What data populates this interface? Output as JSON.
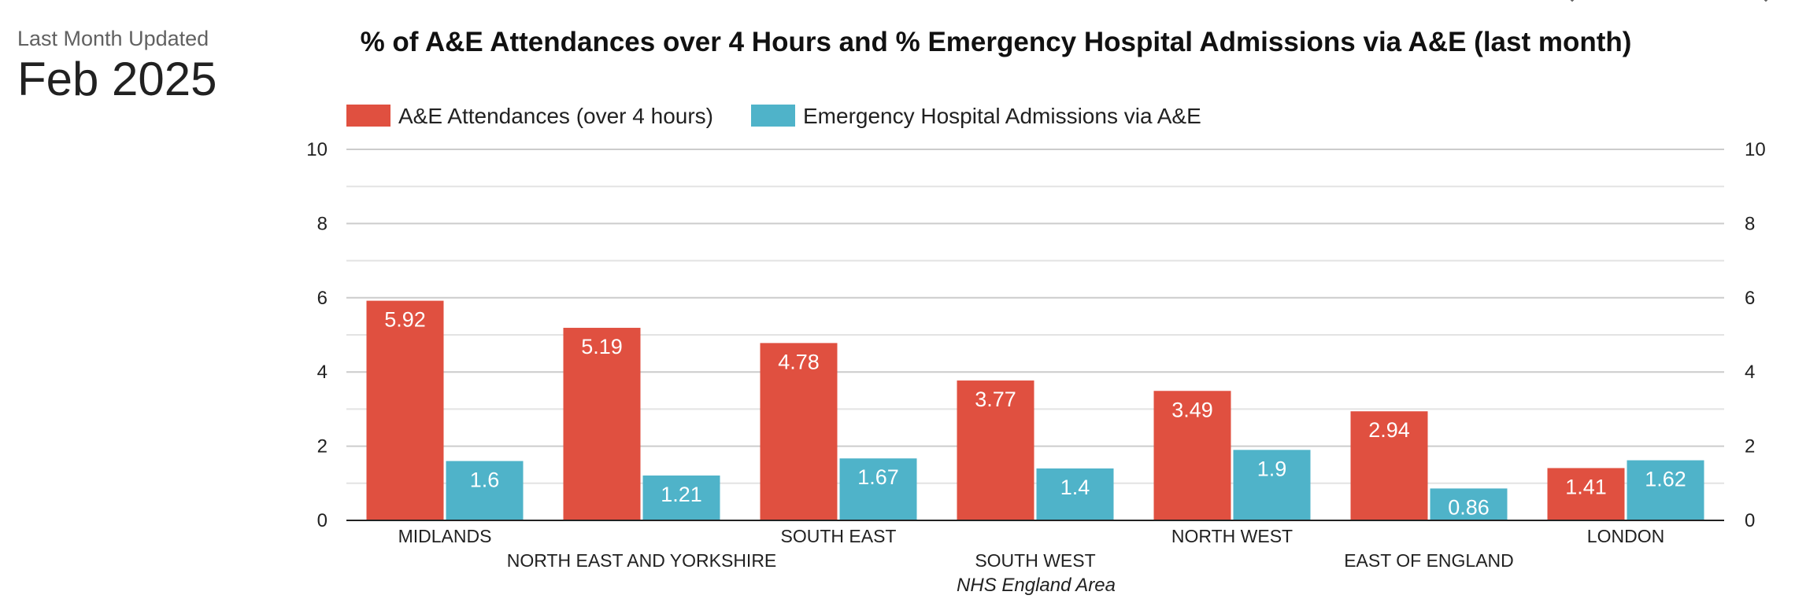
{
  "header": {
    "updated_label": "Last Month Updated",
    "updated_value": "Feb 2025"
  },
  "chart_data": {
    "type": "bar",
    "title": "% of A&E Attendances over 4 Hours and % Emergency Hospital Admissions via A&E (last month)",
    "xlabel": "NHS England Area",
    "ylabel": "",
    "ylim": [
      0,
      10
    ],
    "yticks": [
      "0",
      "2",
      "4",
      "6",
      "8",
      "10"
    ],
    "grid": true,
    "legend_position": "top-left",
    "categories": [
      "MIDLANDS",
      "NORTH EAST AND YORKSHIRE",
      "SOUTH EAST",
      "SOUTH WEST",
      "NORTH WEST",
      "EAST OF ENGLAND",
      "LONDON"
    ],
    "series": [
      {
        "name": "A&E Attendances (over 4 hours)",
        "color": "#e05040",
        "values": [
          5.92,
          5.19,
          4.78,
          3.77,
          3.49,
          2.94,
          1.41
        ],
        "labels": [
          "5.92",
          "5.19",
          "4.78",
          "3.77",
          "3.49",
          "2.94",
          "1.41"
        ]
      },
      {
        "name": "Emergency Hospital Admissions via A&E",
        "color": "#4fb3c9",
        "values": [
          1.6,
          1.21,
          1.67,
          1.4,
          1.9,
          0.86,
          1.62
        ],
        "labels": [
          "1.6",
          "1.21",
          "1.67",
          "1.4",
          "1.9",
          "0.86",
          "1.62"
        ]
      }
    ]
  }
}
